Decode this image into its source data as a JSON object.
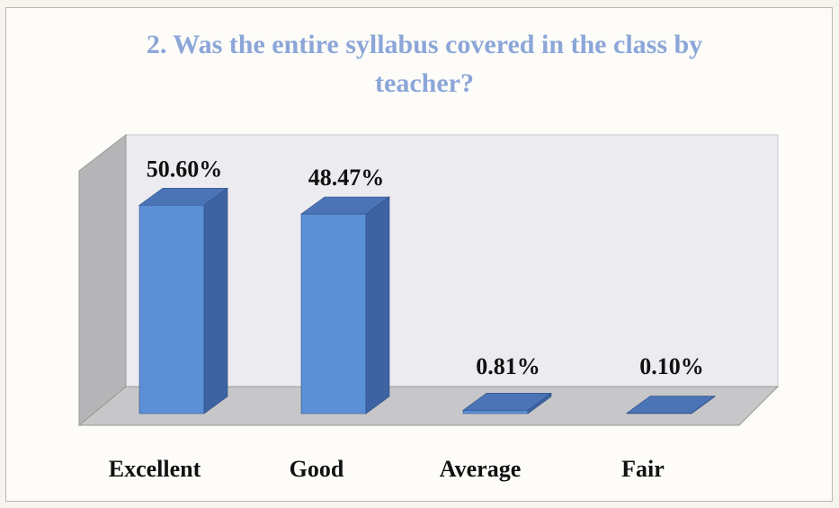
{
  "chart_data": {
    "type": "bar3d",
    "title": "2. Was the entire syllabus covered in the class by teacher?",
    "categories": [
      "Excellent",
      "Good",
      "Average",
      "Fair"
    ],
    "values": [
      50.6,
      48.47,
      0.81,
      0.1
    ],
    "value_labels": [
      "50.60%",
      "48.47%",
      "0.81%",
      "0.10%"
    ],
    "color": "#5b8fd6"
  }
}
